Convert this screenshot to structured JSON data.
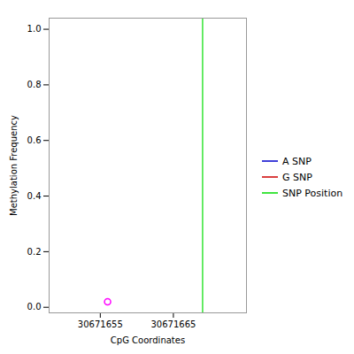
{
  "chart_data": {
    "type": "scatter",
    "xlabel": "CpG Coordinates",
    "ylabel": "Methylation Frequency",
    "xlim": [
      30671648,
      30671675
    ],
    "xticks": [
      30671655,
      30671665
    ],
    "ylim": [
      -0.02,
      1.04
    ],
    "yticks": [
      {
        "value": 0.0,
        "label": "0.0"
      },
      0.2,
      0.4,
      0.6,
      0.8,
      {
        "value": 1.0,
        "label": "1.0"
      }
    ],
    "grid": false,
    "legend": "right",
    "series": [
      {
        "type": "scatter",
        "color": "#ff00ff",
        "marker": "o",
        "x": [
          30671656
        ],
        "values": [
          0.02
        ]
      },
      {
        "name": "A SNP",
        "type": "line",
        "color": "#0000cc",
        "x": [],
        "values": []
      },
      {
        "name": "G SNP",
        "type": "line",
        "color": "#cc0000",
        "x": [],
        "values": []
      },
      {
        "name": "SNP Position",
        "type": "vline",
        "color": "#00dd00",
        "x": [
          30671669
        ]
      }
    ]
  }
}
